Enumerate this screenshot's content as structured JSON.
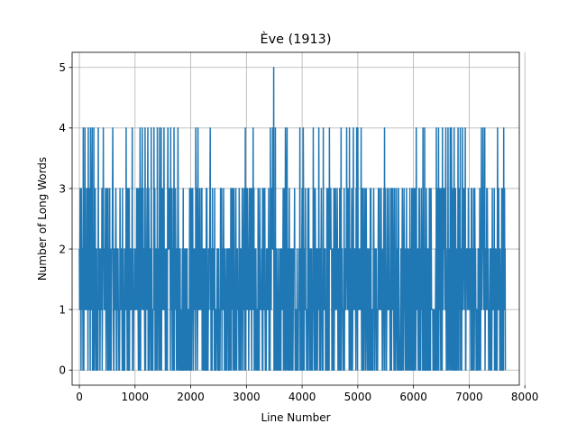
{
  "chart_data": {
    "type": "line",
    "title": "Ève (1913)",
    "xlabel": "Line Number",
    "ylabel": "Number of Long Words",
    "xlim": [
      -130,
      7900
    ],
    "ylim": [
      -0.25,
      5.25
    ],
    "xticks": [
      0,
      1000,
      2000,
      3000,
      4000,
      5000,
      6000,
      7000,
      8000
    ],
    "yticks": [
      0,
      1,
      2,
      3,
      4,
      5
    ],
    "grid": true,
    "series": [
      {
        "color": "#1f77b4",
        "x_range": [
          0,
          7650
        ],
        "value_range": [
          0,
          5
        ],
        "dominant_values": [
          0,
          1,
          2,
          3
        ],
        "x_at_value_4": [
          70,
          100,
          160,
          200,
          230,
          260,
          340,
          430,
          600,
          840,
          950,
          1090,
          1130,
          1180,
          1230,
          1290,
          1340,
          1400,
          1440,
          1470,
          1520,
          1590,
          1640,
          1700,
          1770,
          2090,
          2130,
          2350,
          2980,
          3120,
          3430,
          3470,
          3520,
          3700,
          3730,
          3960,
          4020,
          4200,
          4300,
          4380,
          4490,
          4700,
          4800,
          4850,
          4920,
          4980,
          5000,
          5060,
          5480,
          6050,
          6170,
          6200,
          6410,
          6450,
          6520,
          6580,
          6620,
          6660,
          6680,
          6730,
          6800,
          6840,
          6880,
          6930,
          7220,
          7250,
          7280,
          7510,
          7620
        ],
        "x_at_value_5": [
          3490
        ]
      }
    ]
  }
}
